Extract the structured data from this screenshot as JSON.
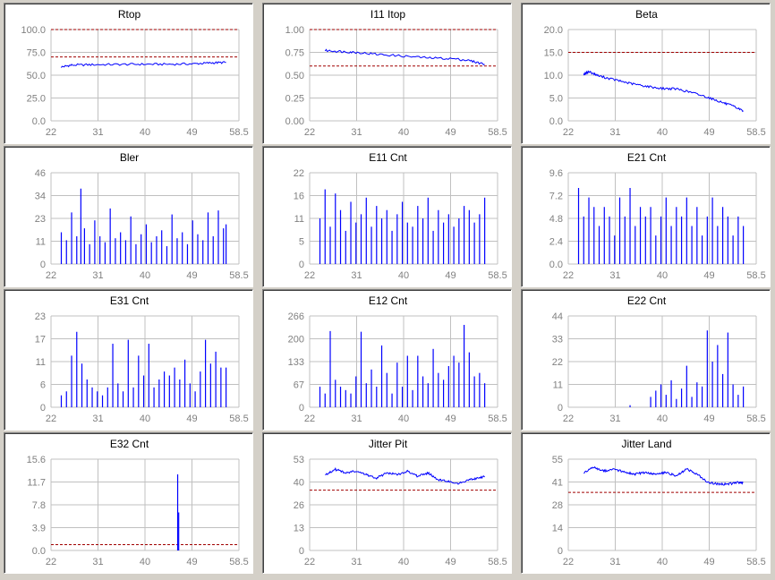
{
  "chart_data": [
    {
      "type": "line",
      "title": "Rtop",
      "x_ticks": [
        "22",
        "31",
        "40",
        "49",
        "58.5"
      ],
      "xlim": [
        22,
        58.5
      ],
      "y_ticks": [
        "0.0",
        "25.0",
        "50.0",
        "75.0",
        "100.0"
      ],
      "ylim": [
        0,
        100
      ],
      "ref_lines": [
        70,
        100
      ],
      "series": [
        {
          "color": "#0000ff",
          "x": [
            24,
            26,
            30,
            35,
            40,
            45,
            50,
            53,
            56
          ],
          "y": [
            59,
            61,
            61.5,
            61.8,
            62,
            62,
            62.5,
            63.5,
            64
          ]
        }
      ]
    },
    {
      "type": "line",
      "title": "I11 Itop",
      "x_ticks": [
        "22",
        "31",
        "40",
        "49",
        "58.5"
      ],
      "xlim": [
        22,
        58.5
      ],
      "y_ticks": [
        "0.00",
        "0.25",
        "0.50",
        "0.75",
        "1.00"
      ],
      "ylim": [
        0,
        1
      ],
      "ref_lines": [
        0.6,
        1.0
      ],
      "series": [
        {
          "color": "#0000ff",
          "x": [
            25,
            28,
            31,
            35,
            40,
            45,
            50,
            53,
            56
          ],
          "y": [
            0.77,
            0.76,
            0.75,
            0.73,
            0.71,
            0.69,
            0.68,
            0.66,
            0.62
          ]
        }
      ]
    },
    {
      "type": "line",
      "title": "Beta",
      "x_ticks": [
        "22",
        "31",
        "40",
        "49",
        "58.5"
      ],
      "xlim": [
        22,
        58.5
      ],
      "y_ticks": [
        "0.0",
        "5.0",
        "10.0",
        "15.0",
        "20.0"
      ],
      "ylim": [
        0,
        20
      ],
      "ref_lines": [
        15
      ],
      "series": [
        {
          "color": "#0000ff",
          "x": [
            25,
            26,
            28,
            31,
            34,
            37,
            40,
            43,
            46,
            49,
            52,
            54,
            56
          ],
          "y": [
            10.2,
            10.8,
            9.8,
            9.0,
            8.2,
            7.6,
            7.1,
            7.0,
            6.2,
            5.2,
            4.0,
            3.2,
            2.2
          ]
        }
      ]
    },
    {
      "type": "bar",
      "title": "Bler",
      "x_ticks": [
        "22",
        "31",
        "40",
        "49",
        "58.5"
      ],
      "xlim": [
        22,
        58.5
      ],
      "y_ticks": [
        "0",
        "11",
        "23",
        "34",
        "46"
      ],
      "ylim": [
        0,
        46
      ],
      "series": [
        {
          "color": "#0000ff",
          "x": [
            24,
            25,
            26,
            27,
            27.8,
            28.5,
            29.5,
            30.5,
            31.5,
            32.5,
            33.5,
            34.5,
            35.5,
            36.5,
            37.5,
            38.5,
            39.5,
            40.5,
            41.5,
            42.5,
            43.5,
            44.5,
            45.5,
            46.5,
            47.5,
            48.5,
            49.5,
            50.5,
            51.5,
            52.5,
            53.5,
            54.5,
            55.5,
            56
          ],
          "y": [
            16,
            12,
            26,
            14,
            38,
            18,
            10,
            22,
            14,
            11,
            28,
            13,
            16,
            12,
            24,
            10,
            15,
            20,
            11,
            14,
            17,
            9,
            25,
            13,
            16,
            10,
            22,
            15,
            12,
            26,
            14,
            27,
            18,
            20
          ]
        }
      ]
    },
    {
      "type": "bar",
      "title": "E11 Cnt",
      "x_ticks": [
        "22",
        "31",
        "40",
        "49",
        "58.5"
      ],
      "xlim": [
        22,
        58.5
      ],
      "y_ticks": [
        "0",
        "5",
        "11",
        "16",
        "22"
      ],
      "ylim": [
        0,
        22
      ],
      "series": [
        {
          "color": "#0000ff",
          "x": [
            24,
            25,
            26,
            27,
            28,
            29,
            30,
            31,
            32,
            33,
            34,
            35,
            36,
            37,
            38,
            39,
            40,
            41,
            42,
            43,
            44,
            45,
            46,
            47,
            48,
            49,
            50,
            51,
            52,
            53,
            54,
            55,
            56
          ],
          "y": [
            11,
            18,
            9,
            17,
            13,
            8,
            15,
            10,
            12,
            16,
            9,
            14,
            11,
            13,
            8,
            12,
            15,
            10,
            9,
            14,
            11,
            16,
            8,
            13,
            10,
            12,
            9,
            11,
            14,
            13,
            10,
            12,
            16
          ]
        }
      ]
    },
    {
      "type": "bar",
      "title": "E21 Cnt",
      "x_ticks": [
        "22",
        "31",
        "40",
        "49",
        "58.5"
      ],
      "xlim": [
        22,
        58.5
      ],
      "y_ticks": [
        "0.0",
        "2.4",
        "4.8",
        "7.2",
        "9.6"
      ],
      "ylim": [
        0,
        9.6
      ],
      "series": [
        {
          "color": "#0000ff",
          "x": [
            24,
            25,
            26,
            27,
            28,
            29,
            30,
            31,
            32,
            33,
            34,
            35,
            36,
            37,
            38,
            39,
            40,
            41,
            42,
            43,
            44,
            45,
            46,
            47,
            48,
            49,
            50,
            51,
            52,
            53,
            54,
            55,
            56
          ],
          "y": [
            8,
            5,
            7,
            6,
            4,
            6,
            5,
            3,
            7,
            5,
            8,
            4,
            6,
            5,
            6,
            3,
            5,
            7,
            4,
            6,
            5,
            7,
            4,
            6,
            3,
            5,
            7,
            4,
            6,
            5,
            3,
            5,
            4
          ]
        }
      ]
    },
    {
      "type": "bar",
      "title": "E31 Cnt",
      "x_ticks": [
        "22",
        "31",
        "40",
        "49",
        "58.5"
      ],
      "xlim": [
        22,
        58.5
      ],
      "y_ticks": [
        "0",
        "6",
        "11",
        "17",
        "23"
      ],
      "ylim": [
        0,
        23
      ],
      "series": [
        {
          "color": "#0000ff",
          "x": [
            24,
            25,
            26,
            27,
            28,
            29,
            30,
            31,
            32,
            33,
            34,
            35,
            36,
            37,
            38,
            39,
            40,
            41,
            42,
            43,
            44,
            45,
            46,
            47,
            48,
            49,
            50,
            51,
            52,
            53,
            54,
            55,
            56
          ],
          "y": [
            3,
            4,
            13,
            19,
            11,
            7,
            5,
            4,
            3,
            5,
            16,
            6,
            4,
            17,
            5,
            13,
            8,
            16,
            5,
            7,
            9,
            8,
            10,
            7,
            12,
            6,
            4,
            9,
            17,
            11,
            14,
            10,
            10
          ]
        }
      ]
    },
    {
      "type": "bar",
      "title": "E12 Cnt",
      "x_ticks": [
        "22",
        "31",
        "40",
        "49",
        "58.5"
      ],
      "xlim": [
        22,
        58.5
      ],
      "y_ticks": [
        "0",
        "67",
        "133",
        "200",
        "266"
      ],
      "ylim": [
        0,
        266
      ],
      "series": [
        {
          "color": "#0000ff",
          "x": [
            24,
            25,
            26,
            27,
            28,
            29,
            30,
            31,
            32,
            33,
            34,
            35,
            36,
            37,
            38,
            39,
            40,
            41,
            42,
            43,
            44,
            45,
            46,
            47,
            48,
            49,
            50,
            51,
            52,
            53,
            54,
            55,
            56
          ],
          "y": [
            60,
            40,
            222,
            80,
            60,
            50,
            40,
            90,
            220,
            70,
            110,
            60,
            180,
            100,
            40,
            130,
            60,
            150,
            50,
            150,
            90,
            70,
            170,
            100,
            80,
            120,
            150,
            130,
            240,
            160,
            90,
            100,
            70
          ]
        }
      ]
    },
    {
      "type": "bar",
      "title": "E22 Cnt",
      "x_ticks": [
        "22",
        "31",
        "40",
        "49",
        "58.5"
      ],
      "xlim": [
        22,
        58.5
      ],
      "y_ticks": [
        "0",
        "11",
        "22",
        "33",
        "44"
      ],
      "ylim": [
        0,
        44
      ],
      "series": [
        {
          "color": "#0000ff",
          "x": [
            34,
            38,
            39,
            40,
            41,
            42,
            43,
            44,
            45,
            46,
            47,
            48,
            49,
            50,
            51,
            52,
            53,
            54,
            55,
            56
          ],
          "y": [
            1,
            5,
            8,
            11,
            6,
            13,
            4,
            9,
            20,
            5,
            12,
            10,
            37,
            22,
            30,
            16,
            36,
            11,
            6,
            10
          ]
        }
      ]
    },
    {
      "type": "bar",
      "title": "E32 Cnt",
      "x_ticks": [
        "22",
        "31",
        "40",
        "49",
        "58.5"
      ],
      "xlim": [
        22,
        58.5
      ],
      "y_ticks": [
        "0.0",
        "3.9",
        "7.8",
        "11.7",
        "15.6"
      ],
      "ylim": [
        0,
        15.6
      ],
      "ref_lines": [
        1.0
      ],
      "series": [
        {
          "color": "#0000ff",
          "x": [
            46.6,
            46.8
          ],
          "y": [
            13,
            6.5
          ]
        }
      ]
    },
    {
      "type": "line",
      "title": "Jitter Pit",
      "x_ticks": [
        "22",
        "31",
        "40",
        "49",
        "58.5"
      ],
      "xlim": [
        22,
        58.5
      ],
      "y_ticks": [
        "0",
        "13",
        "26",
        "40",
        "53"
      ],
      "ylim": [
        0,
        53
      ],
      "ref_lines": [
        35
      ],
      "series": [
        {
          "color": "#0000ff",
          "x": [
            25,
            27,
            29,
            31,
            33,
            35,
            37,
            39,
            41,
            43,
            45,
            47,
            49,
            51,
            53,
            55,
            56
          ],
          "y": [
            44,
            47,
            45,
            46,
            44,
            42,
            45,
            44,
            46,
            43,
            45,
            41,
            40,
            39,
            41,
            42,
            43
          ]
        }
      ]
    },
    {
      "type": "line",
      "title": "Jitter Land",
      "x_ticks": [
        "22",
        "31",
        "40",
        "49",
        "58.5"
      ],
      "xlim": [
        22,
        58.5
      ],
      "y_ticks": [
        "0",
        "14",
        "28",
        "41",
        "55"
      ],
      "ylim": [
        0,
        55
      ],
      "ref_lines": [
        35
      ],
      "series": [
        {
          "color": "#0000ff",
          "x": [
            25,
            27,
            29,
            31,
            33,
            35,
            37,
            39,
            41,
            43,
            45,
            47,
            49,
            51,
            53,
            55,
            56
          ],
          "y": [
            47,
            50,
            48,
            49,
            47,
            46,
            47,
            46,
            47,
            45,
            49,
            46,
            41,
            40,
            40,
            41,
            41
          ]
        }
      ]
    }
  ]
}
